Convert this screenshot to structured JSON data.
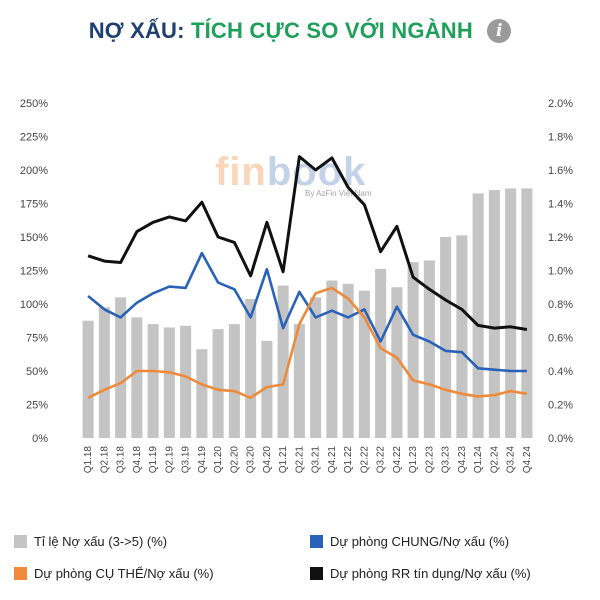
{
  "header": {
    "title_part1": "NỢ XẤU:",
    "title_part2": "TÍCH CỰC SO VỚI NGÀNH",
    "info_icon": "i"
  },
  "watermark": {
    "logo_fin": "fin",
    "logo_book": "book",
    "tagline": "By AzFin Việt Nam"
  },
  "colors": {
    "bar": "#c4c4c4",
    "chung": "#2962b8",
    "cuthe": "#ee8a3a",
    "rr": "#111111"
  },
  "chart_data": {
    "type": "bar",
    "categories": [
      "Q1.18",
      "Q2.18",
      "Q3.18",
      "Q4.18",
      "Q1.19",
      "Q2.19",
      "Q3.19",
      "Q4.19",
      "Q1.20",
      "Q2.20",
      "Q3.20",
      "Q4.20",
      "Q1.21",
      "Q2.21",
      "Q3.21",
      "Q4.21",
      "Q1.22",
      "Q2.22",
      "Q3.22",
      "Q4.22",
      "Q1.23",
      "Q2.23",
      "Q3.23",
      "Q4.23",
      "Q1.24",
      "Q2.24",
      "Q3.24",
      "Q4.24"
    ],
    "x_tick_labels": [
      "Q1.18",
      "Q2.18",
      "Q3.18",
      "Q4.18",
      "Q1.19",
      "Q2.19",
      "Q3.19",
      "Q4.19",
      "Q1.20",
      "Q2.20",
      "Q3.20",
      "Q4.20",
      "Q1.21",
      "Q2.21",
      "Q3.21",
      "Q4.21",
      "Q1.22",
      "Q2.22",
      "Q3.22",
      "Q4.22",
      "Q1.23",
      "Q2.23",
      "Q3.23",
      "Q4.23",
      "Q1.24",
      "Q2.24",
      "Q3.24",
      "Q4.24"
    ],
    "left_axis": {
      "ticks": [
        "0%",
        "25%",
        "50%",
        "75%",
        "100%",
        "125%",
        "150%",
        "175%",
        "200%",
        "225%",
        "250%"
      ],
      "ylim": [
        0,
        250
      ]
    },
    "right_axis": {
      "ticks": [
        "0.0%",
        "0.2%",
        "0.4%",
        "0.6%",
        "0.8%",
        "1.0%",
        "1.2%",
        "1.4%",
        "1.6%",
        "1.8%",
        "2.0%"
      ],
      "ylim": [
        0,
        2.0
      ]
    },
    "bar_series": {
      "name": "Tỉ lệ Nợ xấu (3->5) (%)",
      "axis": "right",
      "values": [
        0.7,
        0.78,
        0.84,
        0.72,
        0.68,
        0.66,
        0.67,
        0.53,
        0.65,
        0.68,
        0.83,
        0.58,
        0.91,
        0.68,
        0.84,
        0.94,
        0.92,
        0.88,
        1.01,
        0.9,
        1.05,
        1.06,
        1.2,
        1.21,
        1.46,
        1.48,
        1.49,
        1.49
      ]
    },
    "line_series": [
      {
        "name": "Dự phòng CHUNG/Nợ xấu (%)",
        "axis": "left",
        "color_key": "chung",
        "values": [
          106,
          96,
          90,
          101,
          108,
          113,
          112,
          138,
          116,
          111,
          90,
          126,
          82,
          109,
          90,
          95,
          90,
          96,
          72,
          98,
          77,
          72,
          65,
          64,
          52,
          51,
          50,
          50
        ]
      },
      {
        "name": "Dự phòng CỤ THỂ/Nợ xấu (%)",
        "axis": "left",
        "color_key": "cuthe",
        "values": [
          30,
          36,
          41,
          50,
          50,
          49,
          46,
          40,
          36,
          35,
          30,
          38,
          40,
          85,
          108,
          112,
          104,
          90,
          67,
          60,
          43,
          40,
          36,
          33,
          31,
          32,
          35,
          33
        ]
      },
      {
        "name": "Dự phòng RR tín dụng/Nợ xấu (%)",
        "axis": "left",
        "color_key": "rr",
        "values": [
          136,
          132,
          131,
          154,
          161,
          165,
          162,
          176,
          150,
          146,
          121,
          161,
          124,
          210,
          200,
          209,
          187,
          174,
          139,
          158,
          120,
          111,
          103,
          96,
          84,
          82,
          83,
          81
        ]
      }
    ],
    "legend_placement": "bottom",
    "grid": false
  },
  "legend": [
    {
      "label": "Tỉ lệ Nợ xấu (3->5) (%)",
      "color_key": "bar"
    },
    {
      "label": "Dự phòng CHUNG/Nợ xấu (%)",
      "color_key": "chung"
    },
    {
      "label": "Dự phòng CỤ THỂ/Nợ xấu (%)",
      "color_key": "cuthe"
    },
    {
      "label": "Dự phòng RR tín dụng/Nợ xấu (%)",
      "color_key": "rr"
    }
  ]
}
